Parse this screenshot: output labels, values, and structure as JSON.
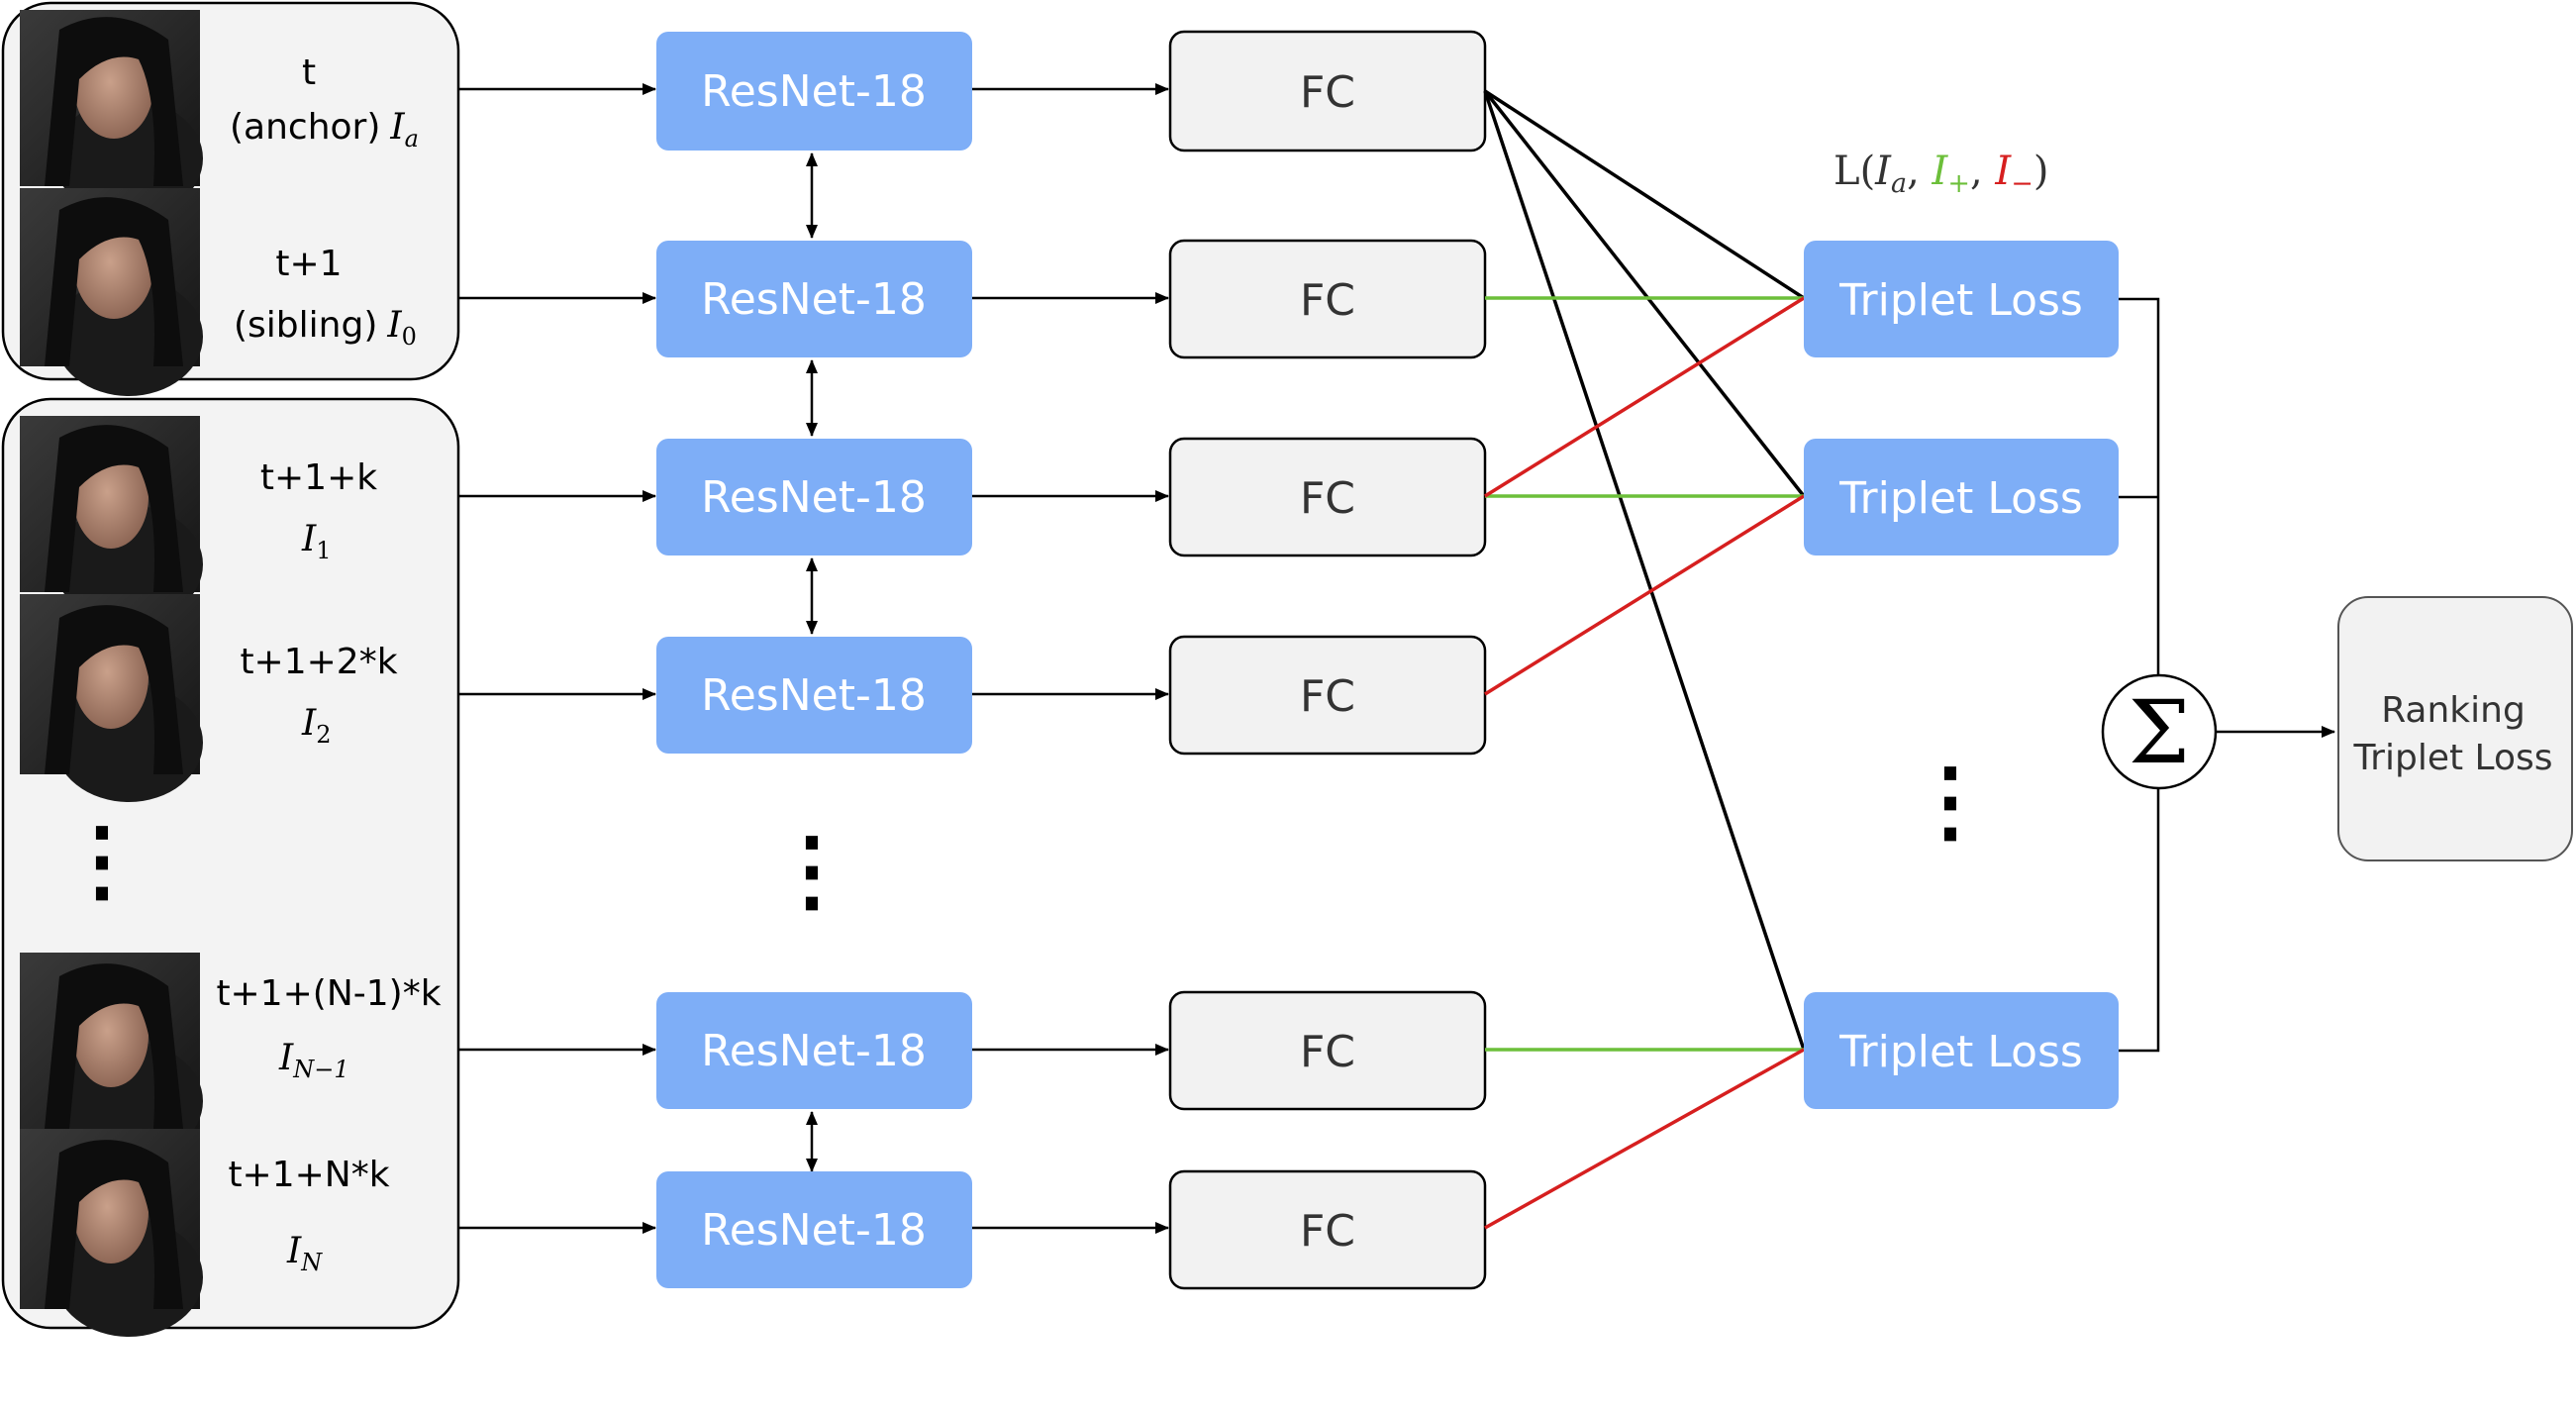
{
  "colors": {
    "blue_box": "#7eaef7",
    "gray_box": "#f2f2f2",
    "positive": "#6cbf3a",
    "negative": "#d61f1f",
    "edge": "#000000"
  },
  "frames": [
    {
      "time": "t",
      "role": "(anchor)",
      "sym": "I",
      "sub": "a"
    },
    {
      "time": "t+1",
      "role": "(sibling)",
      "sym": "I",
      "sub": "0"
    },
    {
      "time": "t+1+k",
      "role": "",
      "sym": "I",
      "sub": "1"
    },
    {
      "time": "t+1+2*k",
      "role": "",
      "sym": "I",
      "sub": "2"
    },
    {
      "time": "t+1+(N-1)*k",
      "role": "",
      "sym": "I",
      "sub": "N−1"
    },
    {
      "time": "t+1+N*k",
      "role": "",
      "sym": "I",
      "sub": "N"
    }
  ],
  "resnet_label": "ResNet-18",
  "fc_label": "FC",
  "triplet_label": "Triplet Loss",
  "loss_formula": {
    "prefix": "L(",
    "a": "I",
    "a_sub": "a",
    "sep1": ", ",
    "p": "I",
    "p_sub": "+",
    "sep2": ", ",
    "n": "I",
    "n_sub": "−",
    "suffix": ")"
  },
  "sum_symbol": "Σ",
  "output_label": [
    "Ranking",
    "Triplet Loss"
  ],
  "ellipsis": "⋮"
}
